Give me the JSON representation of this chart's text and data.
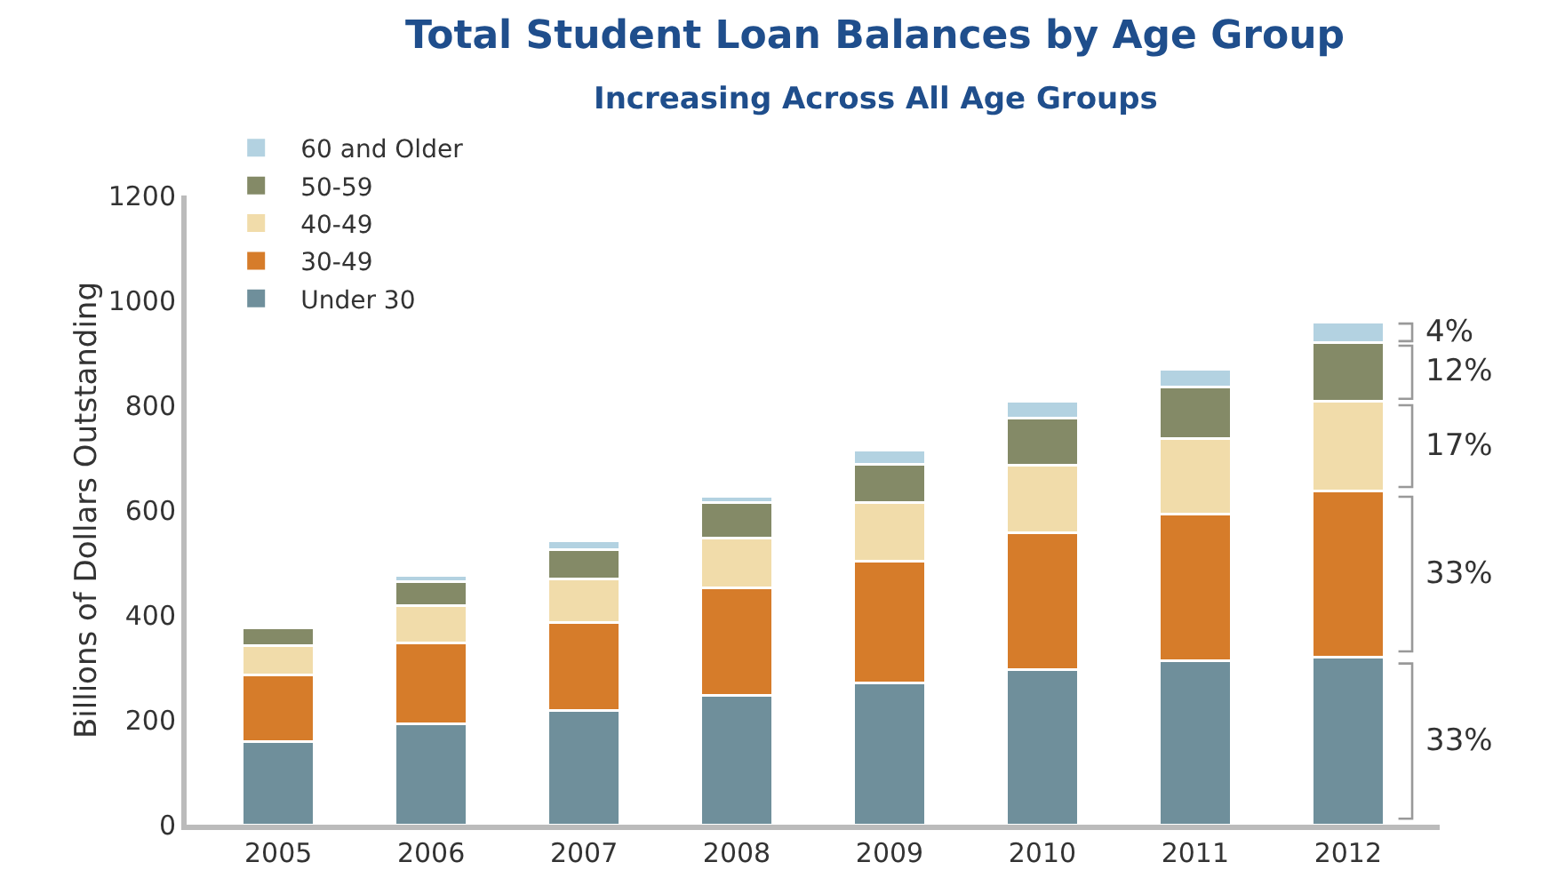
{
  "chart_data": {
    "type": "bar",
    "title": "Total Student Loan Balances by Age Group",
    "subtitle": "Increasing Across All Age Groups",
    "ylabel": "Billions of Dollars Outstanding",
    "categories": [
      "2005",
      "2006",
      "2007",
      "2008",
      "2009",
      "2010",
      "2011",
      "2012"
    ],
    "stacked": true,
    "series": [
      {
        "name": "Under 30",
        "color": "#6f8f9b",
        "values": [
          159,
          193,
          217,
          247,
          271,
          295,
          312,
          319
        ]
      },
      {
        "name": "30-49",
        "color": "#d67c2a",
        "values": [
          126,
          153,
          169,
          204,
          231,
          261,
          281,
          318
        ]
      },
      {
        "name": "40-49",
        "color": "#f1dcaa",
        "values": [
          57,
          71,
          82,
          95,
          112,
          129,
          143,
          170
        ]
      },
      {
        "name": "50-59",
        "color": "#848a67",
        "values": [
          34,
          47,
          57,
          68,
          74,
          91,
          98,
          112
        ]
      },
      {
        "name": "60 and Older",
        "color": "#b3d2e1",
        "values": [
          null,
          11,
          17,
          13,
          27,
          31,
          34,
          40
        ]
      }
    ],
    "ylim": [
      0,
      1200
    ],
    "yticks": [
      0,
      200,
      400,
      600,
      800,
      1000,
      1200
    ],
    "grid": false,
    "legend": "top left",
    "annotations": [
      "33%",
      "33%",
      "17%",
      "12%",
      "4%"
    ]
  }
}
